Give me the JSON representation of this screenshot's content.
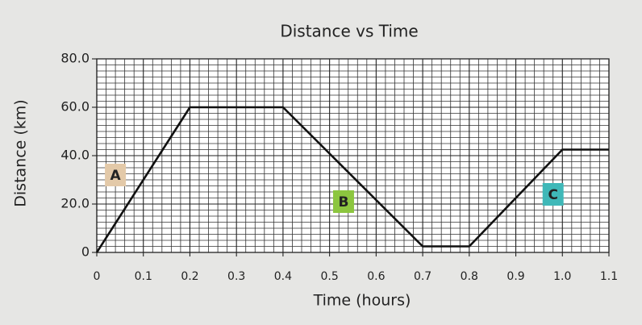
{
  "chart_data": {
    "type": "line",
    "title": "Distance vs Time",
    "x_label": "Time (hours)",
    "y_label": "Distance (km)",
    "x": [
      0,
      0.2,
      0.4,
      0.7,
      0.8,
      1.0,
      1.1
    ],
    "series": [
      {
        "name": "Distance",
        "color": "#111111",
        "values": [
          0,
          60,
          60,
          2.5,
          2.5,
          42.5,
          42.5
        ]
      }
    ],
    "xlim": [
      0,
      1.1
    ],
    "xticks": [
      0,
      0.1,
      0.2,
      0.3,
      0.4,
      0.5,
      0.6,
      0.7,
      0.8,
      0.9,
      {
        "value": 1,
        "label": "1.0"
      },
      1.1
    ],
    "ylim": [
      0,
      80
    ],
    "yticks": [
      0,
      {
        "value": 20,
        "label": "20.0"
      },
      {
        "value": 40,
        "label": "40.0"
      },
      {
        "value": 60,
        "label": "60.0"
      },
      {
        "value": 80,
        "label": "80.0"
      }
    ],
    "grid": true,
    "annotations": [
      {
        "text": "A",
        "x": 0.04,
        "y": 32,
        "color": "#e3c9a8"
      },
      {
        "text": "B",
        "x": 0.53,
        "y": 21,
        "color": "#8cc63f"
      },
      {
        "text": "C",
        "x": 0.98,
        "y": 24,
        "color": "#3fb8b8"
      }
    ]
  }
}
